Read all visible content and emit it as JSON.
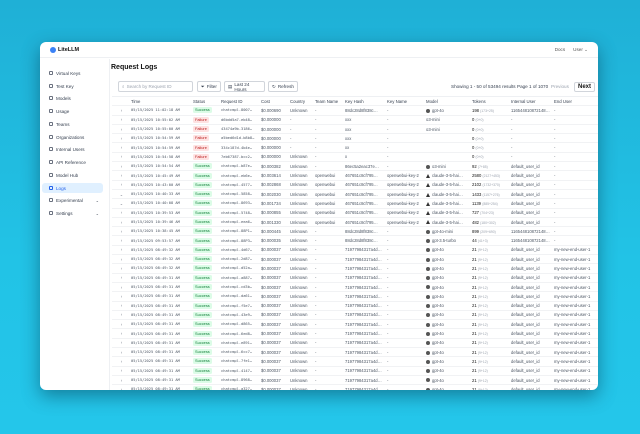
{
  "app": {
    "name": "LiteLLM",
    "docs": "Docs",
    "user": "User"
  },
  "sidebar": {
    "items": [
      {
        "label": "Virtual Keys",
        "icon": "key-icon"
      },
      {
        "label": "Test Key",
        "icon": "play-icon"
      },
      {
        "label": "Models",
        "icon": "cube-icon"
      },
      {
        "label": "Usage",
        "icon": "chart-icon"
      },
      {
        "label": "Teams",
        "icon": "team-icon"
      },
      {
        "label": "Organizations",
        "icon": "bank-icon"
      },
      {
        "label": "Internal Users",
        "icon": "user-icon"
      },
      {
        "label": "API Reference",
        "icon": "api-icon"
      },
      {
        "label": "Model Hub",
        "icon": "book-icon"
      },
      {
        "label": "Logs",
        "icon": "logs-icon",
        "active": true
      },
      {
        "label": "Experimental",
        "icon": "experiment-icon",
        "expandable": true
      },
      {
        "label": "Settings",
        "icon": "gear-icon",
        "expandable": true
      }
    ]
  },
  "page": {
    "title": "Request Logs"
  },
  "toolbar": {
    "search_placeholder": "Search by Request ID",
    "filter": "Filter",
    "time_range": "Last 24 Hours",
    "refresh": "Refresh",
    "results": "Showing 1 - 50 of 53494 results",
    "page": "Page 1 of 1070",
    "previous": "Previous",
    "next": "Next"
  },
  "table": {
    "columns": [
      "",
      "Time",
      "Status",
      "Request ID",
      "Cost",
      "Country",
      "Team Name",
      "Key Hash",
      "Key Name",
      "Model",
      "Tokens",
      "Internal User",
      "End User"
    ],
    "rows": [
      [
        "05/15/2025 11:02:18 AM",
        "Success",
        "chatcmpl-8007…",
        "$0.000690",
        "Unknown",
        "-",
        "88dc28d8f838c…",
        "-",
        "gpt-4o",
        "198",
        "(173+25)",
        "116544810872148…",
        "-"
      ],
      [
        "05/15/2025 10:55:02 AM",
        "Failure",
        "d6bdd5a7-eb48…",
        "$0.000000",
        "-",
        "-",
        "xxx",
        "-",
        "o3-mini",
        "0",
        "(0+0)",
        "-",
        "-"
      ],
      [
        "05/15/2025 10:55:00 AM",
        "Failure",
        "43474a9b-3186…",
        "$0.000000",
        "-",
        "-",
        "xxx",
        "-",
        "o3-mini",
        "0",
        "(0+0)",
        "-",
        "-"
      ],
      [
        "05/15/2025 10:54:59 AM",
        "Failure",
        "a5bed6d1d-b8b8…",
        "$0.000000",
        "-",
        "-",
        "xxx",
        "-",
        "",
        "0",
        "(0+0)",
        "-",
        "-"
      ],
      [
        "05/15/2025 10:54:59 AM",
        "Failure",
        "334c187d-4b4e…",
        "$0.000000",
        "-",
        "-",
        "xx",
        "-",
        "",
        "0",
        "(0+0)",
        "-",
        "-"
      ],
      [
        "05/15/2025 10:54:58 AM",
        "Failure",
        "7eb67387-bcc2…",
        "$0.000000",
        "Unknown",
        "-",
        "x",
        "-",
        "",
        "0",
        "(0+0)",
        "-",
        "-"
      ],
      [
        "05/15/2025 10:54:54 AM",
        "Success",
        "chatcmpl-b87e…",
        "$0.000382",
        "Unknown",
        "-",
        "86ec5a2eac37e…",
        "-",
        "o3-mini",
        "92",
        "(7+85)",
        "default_user_id",
        "-"
      ],
      [
        "05/15/2025 10:45:49 AM",
        "Success",
        "chatcmpl-eb6e…",
        "$0.003614",
        "Unknown",
        "openwebui",
        "467651c8cf795…",
        "openwebui-key-2",
        "claude-3-5-hai…",
        "2580",
        "(2127+453)",
        "default_user_id",
        "-"
      ],
      [
        "05/15/2025 10:43:00 AM",
        "Success",
        "chatcmpl-4577…",
        "$0.002868",
        "Unknown",
        "openwebui",
        "467651c8cf795…",
        "openwebui-key-2",
        "claude-3-5-hai…",
        "2102",
        "(1732+370)",
        "default_user_id",
        "-"
      ],
      [
        "05/15/2025 10:40:33 AM",
        "Success",
        "chatcmpl-5858…",
        "$0.002030",
        "Unknown",
        "openwebui",
        "467651c8cf795…",
        "openwebui-key-2",
        "claude-3-5-hai…",
        "1433",
        "(1157+276)",
        "default_user_id",
        "-"
      ],
      [
        "05/15/2025 10:40:08 AM",
        "Success",
        "chatcmpl-8693…",
        "$0.001734",
        "Unknown",
        "openwebui",
        "467651c8cf795…",
        "openwebui-key-2",
        "claude-3-5-hai…",
        "1139",
        "(885+254)",
        "default_user_id",
        "-"
      ],
      [
        "05/15/2025 10:39:53 AM",
        "Success",
        "chatcmpl-5748…",
        "$0.000855",
        "Unknown",
        "openwebui",
        "467651c8cf795…",
        "openwebui-key-2",
        "claude-3-5-hai…",
        "727",
        "(704+23)",
        "default_user_id",
        "-"
      ],
      [
        "05/15/2025 10:39:46 AM",
        "Success",
        "chatcmpl-eea6…",
        "$0.001330",
        "Unknown",
        "openwebui",
        "467651c8cf795…",
        "openwebui-key-2",
        "claude-3-5-hai…",
        "482",
        "(180+302)",
        "default_user_id",
        "-"
      ],
      [
        "05/15/2025 10:38:45 AM",
        "Success",
        "chatcmpl-88P1…",
        "$0.000445",
        "Unknown",
        "-",
        "88dc28d8f838c…",
        "-",
        "gpt-4o-mini",
        "899",
        "(209+690)",
        "116544810872148…",
        "-"
      ],
      [
        "05/15/2025 09:53:57 AM",
        "Success",
        "chatcmpl-88P3…",
        "$0.000035",
        "Unknown",
        "-",
        "88dc28d8f838c…",
        "-",
        "gpt-3.5-turbo",
        "44",
        "(41+3)",
        "116544810872148…",
        "-"
      ],
      [
        "05/15/2025 08:49:32 AM",
        "Success",
        "chatcmpl-4d67…",
        "$0.000037",
        "Unknown",
        "-",
        "71977984317a4d…",
        "-",
        "gpt-4o",
        "21",
        "(9+12)",
        "default_user_id",
        "my-new-end-user-1"
      ],
      [
        "05/15/2025 08:49:32 AM",
        "Success",
        "chatcmpl-2d87…",
        "$0.000037",
        "Unknown",
        "-",
        "71977984317a4d…",
        "-",
        "gpt-4o",
        "21",
        "(9+12)",
        "default_user_id",
        "my-new-end-user-1"
      ],
      [
        "05/15/2025 08:49:32 AM",
        "Success",
        "chatcmpl-d52a…",
        "$0.000037",
        "Unknown",
        "-",
        "71977984317a4d…",
        "-",
        "gpt-4o",
        "21",
        "(9+12)",
        "default_user_id",
        "my-new-end-user-1"
      ],
      [
        "05/15/2025 08:49:31 AM",
        "Success",
        "chatcmpl-a887…",
        "$0.000037",
        "Unknown",
        "-",
        "71977984317a4d…",
        "-",
        "gpt-4o",
        "21",
        "(9+12)",
        "default_user_id",
        "my-new-end-user-1"
      ],
      [
        "05/15/2025 08:49:31 AM",
        "Success",
        "chatcmpl-cd3b…",
        "$0.000037",
        "Unknown",
        "-",
        "71977984317a4d…",
        "-",
        "gpt-4o",
        "21",
        "(9+12)",
        "default_user_id",
        "my-new-end-user-1"
      ],
      [
        "05/15/2025 08:49:31 AM",
        "Success",
        "chatcmpl-da61…",
        "$0.000037",
        "Unknown",
        "-",
        "71977984317a4d…",
        "-",
        "gpt-4o",
        "21",
        "(9+12)",
        "default_user_id",
        "my-new-end-user-1"
      ],
      [
        "05/15/2025 08:49:31 AM",
        "Success",
        "chatcmpl-f5e7…",
        "$0.000037",
        "Unknown",
        "-",
        "71977984317a4d…",
        "-",
        "gpt-4o",
        "21",
        "(9+12)",
        "default_user_id",
        "my-new-end-user-1"
      ],
      [
        "05/15/2025 08:49:31 AM",
        "Success",
        "chatcmpl-43e9…",
        "$0.000037",
        "Unknown",
        "-",
        "71977984317a4d…",
        "-",
        "gpt-4o",
        "21",
        "(9+12)",
        "default_user_id",
        "my-new-end-user-1"
      ],
      [
        "05/15/2025 08:49:31 AM",
        "Success",
        "chatcmpl-d865…",
        "$0.000037",
        "Unknown",
        "-",
        "71977984317a4d…",
        "-",
        "gpt-4o",
        "21",
        "(9+12)",
        "default_user_id",
        "my-new-end-user-1"
      ],
      [
        "05/15/2025 08:49:31 AM",
        "Success",
        "chatcmpl-6ed8…",
        "$0.000037",
        "Unknown",
        "-",
        "71977984317a4d…",
        "-",
        "gpt-4o",
        "21",
        "(9+12)",
        "default_user_id",
        "my-new-end-user-1"
      ],
      [
        "05/15/2025 08:49:31 AM",
        "Success",
        "chatcmpl-e891…",
        "$0.000037",
        "Unknown",
        "-",
        "71977984317a4d…",
        "-",
        "gpt-4o",
        "21",
        "(9+12)",
        "default_user_id",
        "my-new-end-user-1"
      ],
      [
        "05/15/2025 08:49:31 AM",
        "Success",
        "chatcmpl-6cc7…",
        "$0.000037",
        "Unknown",
        "-",
        "71977984317a4d…",
        "-",
        "gpt-4o",
        "21",
        "(9+12)",
        "default_user_id",
        "my-new-end-user-1"
      ],
      [
        "05/15/2025 08:49:31 AM",
        "Success",
        "chatcmpl-7fe1…",
        "$0.000037",
        "Unknown",
        "-",
        "71977984317a4d…",
        "-",
        "gpt-4o",
        "21",
        "(9+12)",
        "default_user_id",
        "my-new-end-user-1"
      ],
      [
        "05/15/2025 08:49:31 AM",
        "Success",
        "chatcmpl-4147…",
        "$0.000037",
        "Unknown",
        "-",
        "71977984317a4d…",
        "-",
        "gpt-4o",
        "21",
        "(9+12)",
        "default_user_id",
        "my-new-end-user-1"
      ],
      [
        "05/15/2025 08:49:31 AM",
        "Success",
        "chatcmpl-8968…",
        "$0.000037",
        "Unknown",
        "-",
        "71977984317a4d…",
        "-",
        "gpt-4o",
        "21",
        "(9+12)",
        "default_user_id",
        "my-new-end-user-1"
      ],
      [
        "05/15/2025 08:49:31 AM",
        "Success",
        "chatcmpl-a327…",
        "$0.000037",
        "Unknown",
        "-",
        "71977984317a4d…",
        "-",
        "gpt-4o",
        "21",
        "(9+12)",
        "default_user_id",
        "my-new-end-user-1"
      ]
    ],
    "expanded_rows": [
      9,
      10
    ]
  },
  "colors": {
    "success_bg": "#dcfce7",
    "success_text": "#15803d",
    "failure_bg": "#fee2e2",
    "failure_text": "#b91c1c",
    "active_nav": "#2563eb",
    "background": "#22c3e6"
  }
}
